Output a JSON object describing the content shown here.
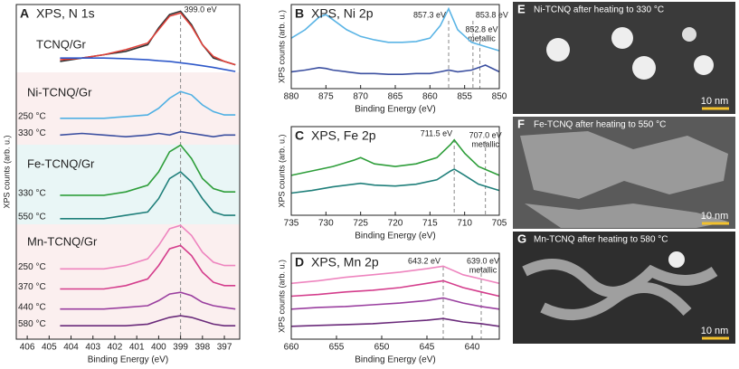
{
  "chart_data": [
    {
      "type": "line",
      "panel": "A",
      "title": "XPS, N 1s",
      "xlabel": "Binding Energy (eV)",
      "ylabel": "XPS counts (arb. u.)",
      "xlim": [
        406.5,
        396.3
      ],
      "xticks": [
        406,
        405,
        404,
        403,
        402,
        401,
        400,
        399,
        398,
        397
      ],
      "ylim": [
        0,
        100
      ],
      "x": [
        404.5,
        403.5,
        402.5,
        401.5,
        400.5,
        400,
        399.5,
        399,
        398.5,
        398,
        397.5,
        397,
        396.5
      ],
      "groups": [
        {
          "name": "TCNQ/Gr",
          "color": "#111111"
        },
        {
          "name": "Ni-TCNQ/Gr",
          "color": "#2a3f9a"
        },
        {
          "name": "Fe-TCNQ/Gr",
          "color": "#1f8a3a"
        },
        {
          "name": "Mn-TCNQ/Gr",
          "color": "#b0226b"
        }
      ],
      "annotations": [
        {
          "text": "399.0 eV",
          "x": 399.0
        }
      ],
      "series": [
        {
          "color": "#333333",
          "values": [
            83,
            84,
            85,
            86,
            88,
            93,
            97,
            98,
            94,
            88,
            84,
            83,
            82
          ]
        },
        {
          "color": "#e0413a",
          "values": [
            83.5,
            84,
            85,
            86.5,
            88.5,
            92.5,
            96.5,
            97.5,
            93.5,
            88,
            84.5,
            83,
            82
          ]
        },
        {
          "color": "#2e58c9",
          "values": [
            84,
            84,
            84,
            83.8,
            83.5,
            83.2,
            83,
            82.6,
            82.2,
            81.7,
            81.2,
            80.6,
            80
          ]
        },
        {
          "name": "250 °C",
          "color": "#4fb0e3",
          "values": [
            66,
            66,
            66,
            66.5,
            67,
            69,
            72,
            74,
            73,
            70,
            68,
            67,
            67
          ]
        },
        {
          "name": "330 °C",
          "color": "#3b4fa0",
          "values": [
            61,
            61.5,
            61,
            60.5,
            61,
            61.5,
            61,
            62,
            61.5,
            61,
            60.5,
            61,
            61
          ]
        },
        {
          "name": "330 °C",
          "color": "#2e9e3a",
          "values": [
            43,
            43,
            43,
            44,
            46,
            50,
            56,
            58,
            54,
            48,
            45,
            44,
            44
          ]
        },
        {
          "name": "550 °C",
          "color": "#1f7f7a",
          "values": [
            36,
            36,
            36,
            37,
            38,
            42,
            48,
            50,
            47,
            42,
            38,
            37,
            37
          ]
        },
        {
          "name": "250 °C",
          "color": "#ee85bf",
          "values": [
            21,
            21,
            21,
            22,
            24,
            28,
            33,
            34,
            31,
            26,
            23,
            22,
            22
          ]
        },
        {
          "name": "370 °C",
          "color": "#d43d8c",
          "values": [
            15,
            15,
            15,
            16,
            18,
            22,
            27,
            28,
            25,
            20,
            17,
            16,
            16
          ]
        },
        {
          "name": "440 °C",
          "color": "#9a3f9f",
          "values": [
            9,
            9,
            9,
            9.5,
            10,
            11.5,
            13.5,
            14,
            13,
            11,
            10,
            9.5,
            9
          ]
        },
        {
          "name": "580 °C",
          "color": "#6a2a7a",
          "values": [
            4,
            4,
            4,
            4,
            4.5,
            5.5,
            6.5,
            7,
            6.5,
            5.5,
            4.5,
            4,
            4
          ]
        }
      ]
    },
    {
      "type": "line",
      "panel": "B",
      "title": "XPS, Ni 2p",
      "xlabel": "Binding Energy (eV)",
      "ylabel": "XPS counts (arb. u.)",
      "xlim": [
        880,
        850
      ],
      "xticks": [
        880,
        875,
        870,
        865,
        860,
        855,
        850
      ],
      "ylim": [
        0,
        100
      ],
      "x": [
        880,
        878,
        876,
        875,
        874,
        872,
        870,
        868,
        866,
        864,
        862,
        860,
        858.5,
        857.3,
        856,
        854,
        852,
        850
      ],
      "annotations": [
        {
          "text": "857.3 eV",
          "x": 857.3
        },
        {
          "text": "853.8 eV",
          "x": 853.8
        },
        {
          "text": "852.8 eV",
          "x": 852.8,
          "note": "metallic"
        }
      ],
      "series": [
        {
          "color": "#5ab4e5",
          "values": [
            60,
            70,
            85,
            88,
            82,
            70,
            62,
            58,
            55,
            55,
            56,
            60,
            75,
            95,
            70,
            55,
            50,
            45
          ]
        },
        {
          "color": "#3b4fa0",
          "values": [
            20,
            22,
            25,
            24,
            22,
            20,
            18,
            18,
            17,
            17,
            18,
            18,
            20,
            22,
            20,
            22,
            28,
            20
          ]
        }
      ]
    },
    {
      "type": "line",
      "panel": "C",
      "title": "XPS, Fe 2p",
      "xlabel": "Binding Energy (eV)",
      "ylabel": "XPS counts (arb. u.)",
      "xlim": [
        735,
        705
      ],
      "xticks": [
        735,
        730,
        725,
        720,
        715,
        710,
        705
      ],
      "ylim": [
        0,
        100
      ],
      "x": [
        735,
        732,
        729,
        726,
        725,
        723,
        720,
        717,
        714,
        712,
        711.5,
        710,
        708,
        705
      ],
      "annotations": [
        {
          "text": "711.5 eV",
          "x": 711.5
        },
        {
          "text": "707.0 eV",
          "x": 707.0,
          "note": "metallic"
        }
      ],
      "series": [
        {
          "color": "#2e9e3a",
          "values": [
            45,
            50,
            55,
            62,
            65,
            58,
            55,
            58,
            65,
            80,
            85,
            70,
            55,
            45
          ]
        },
        {
          "color": "#1f7f7a",
          "values": [
            25,
            28,
            32,
            35,
            36,
            34,
            33,
            35,
            40,
            50,
            52,
            45,
            35,
            28
          ]
        }
      ]
    },
    {
      "type": "line",
      "panel": "D",
      "title": "XPS, Mn 2p",
      "xlabel": "Binding Energy (eV)",
      "ylabel": "XPS counts (arb. u.)",
      "xlim": [
        660,
        637
      ],
      "xticks": [
        660,
        655,
        650,
        645,
        640
      ],
      "ylim": [
        0,
        100
      ],
      "x": [
        660,
        657,
        654,
        651,
        648,
        645,
        643.2,
        641,
        639,
        637
      ],
      "annotations": [
        {
          "text": "643.2 eV",
          "x": 643.2
        },
        {
          "text": "639.0 eV",
          "x": 639.0,
          "note": "metallic"
        }
      ],
      "series": [
        {
          "color": "#ee85bf",
          "values": [
            65,
            68,
            72,
            75,
            78,
            82,
            85,
            75,
            70,
            65
          ]
        },
        {
          "color": "#d43d8c",
          "values": [
            50,
            52,
            55,
            57,
            60,
            65,
            68,
            60,
            55,
            50
          ]
        },
        {
          "color": "#9a3f9f",
          "values": [
            35,
            37,
            38,
            40,
            42,
            45,
            48,
            42,
            38,
            35
          ]
        },
        {
          "color": "#6a2a7a",
          "values": [
            15,
            16,
            17,
            18,
            20,
            22,
            24,
            20,
            18,
            15
          ]
        }
      ]
    }
  ],
  "images": [
    {
      "letter": "E",
      "caption": "Ni-TCNQ after heating to 330 °C",
      "scale": "10 nm"
    },
    {
      "letter": "F",
      "caption": "Fe-TCNQ after heating to 550 °C",
      "scale": "10 nm"
    },
    {
      "letter": "G",
      "caption": "Mn-TCNQ after heating to 580 °C",
      "scale": "10 nm"
    }
  ]
}
